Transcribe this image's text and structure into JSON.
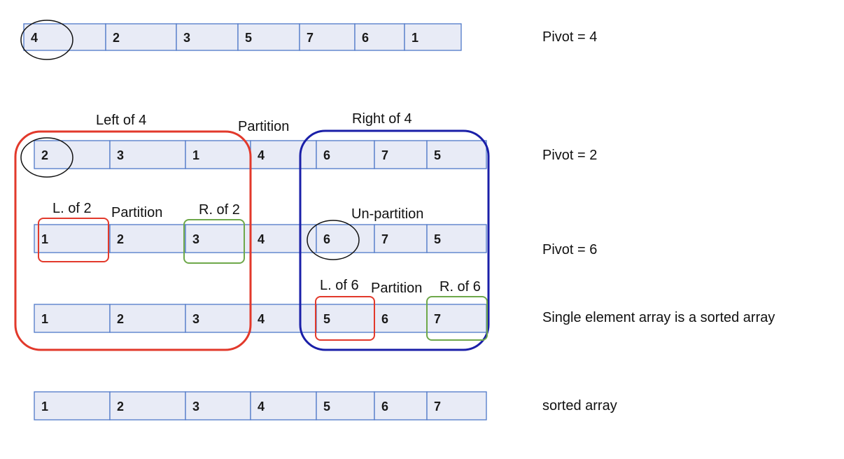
{
  "rows": [
    {
      "id": "row-initial",
      "cells": [
        "4",
        "2",
        "3",
        "5",
        "7",
        "6",
        "1"
      ]
    },
    {
      "id": "row-partition-4",
      "cells": [
        "2",
        "3",
        "1",
        "4",
        "6",
        "7",
        "5"
      ]
    },
    {
      "id": "row-partition-2-6",
      "cells": [
        "1",
        "2",
        "3",
        "4",
        "6",
        "7",
        "5"
      ]
    },
    {
      "id": "row-partition-6",
      "cells": [
        "1",
        "2",
        "3",
        "4",
        "5",
        "6",
        "7"
      ]
    },
    {
      "id": "row-sorted",
      "cells": [
        "1",
        "2",
        "3",
        "4",
        "5",
        "6",
        "7"
      ]
    }
  ],
  "annotations": {
    "left_of_4": "Left of 4",
    "partition_top": "Partition",
    "right_of_4": "Right of 4",
    "l_of_2": "L. of 2",
    "partition_2": "Partition",
    "r_of_2": "R. of 2",
    "un_partition": "Un-partition",
    "l_of_6": "L. of 6",
    "partition_6": "Partition",
    "r_of_6": "R. of 6"
  },
  "notes": {
    "pivot_4": "Pivot = 4",
    "pivot_2": "Pivot = 2",
    "pivot_6": "Pivot = 6",
    "single_element": "Single element array is a sorted array",
    "sorted": "sorted array"
  },
  "colors": {
    "cell_fill": "#e8ebf6",
    "cell_stroke": "#4f78c8",
    "left_group": "#e2392b",
    "right_group": "#1a1fa8",
    "green_group": "#6ea84a",
    "pivot_circle": "#111111"
  }
}
